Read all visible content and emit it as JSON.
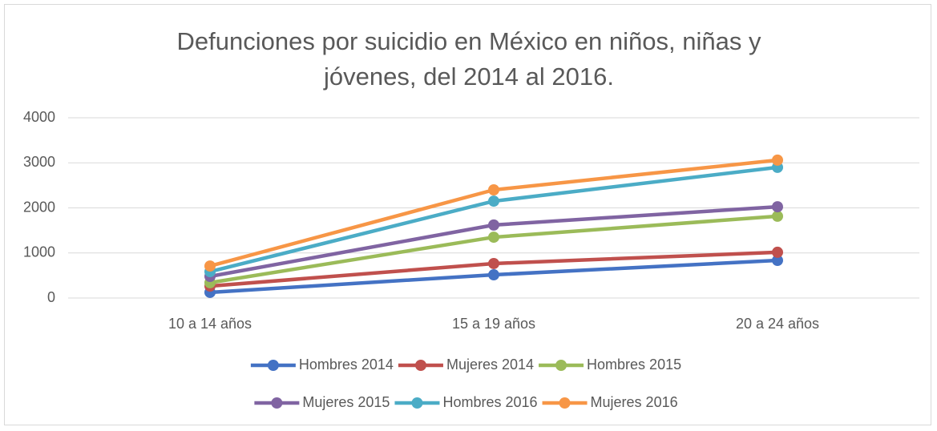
{
  "chart_data": {
    "type": "line",
    "title": "Defunciones por suicidio en México en niños, niñas y jóvenes, del 2014 al 2016.",
    "categories": [
      "10 a 14 años",
      "15 a 19 años",
      "20 a 24 años"
    ],
    "series": [
      {
        "name": "Hombres 2014",
        "color": "#4472c4",
        "values": [
          125,
          515,
          835
        ]
      },
      {
        "name": "Mujeres 2014",
        "color": "#c0504d",
        "values": [
          265,
          765,
          1015
        ]
      },
      {
        "name": "Hombres 2015",
        "color": "#9bbb59",
        "values": [
          340,
          1350,
          1815
        ]
      },
      {
        "name": "Mujeres 2015",
        "color": "#8064a2",
        "values": [
          480,
          1620,
          2025
        ]
      },
      {
        "name": "Hombres 2016",
        "color": "#4bacc6",
        "values": [
          585,
          2150,
          2900
        ]
      },
      {
        "name": "Mujeres 2016",
        "color": "#f79646",
        "values": [
          710,
          2400,
          3060
        ]
      }
    ],
    "ylim": [
      0,
      4000
    ],
    "yticks": [
      0,
      1000,
      2000,
      3000,
      4000
    ],
    "grid": true,
    "legend": "bottom"
  }
}
